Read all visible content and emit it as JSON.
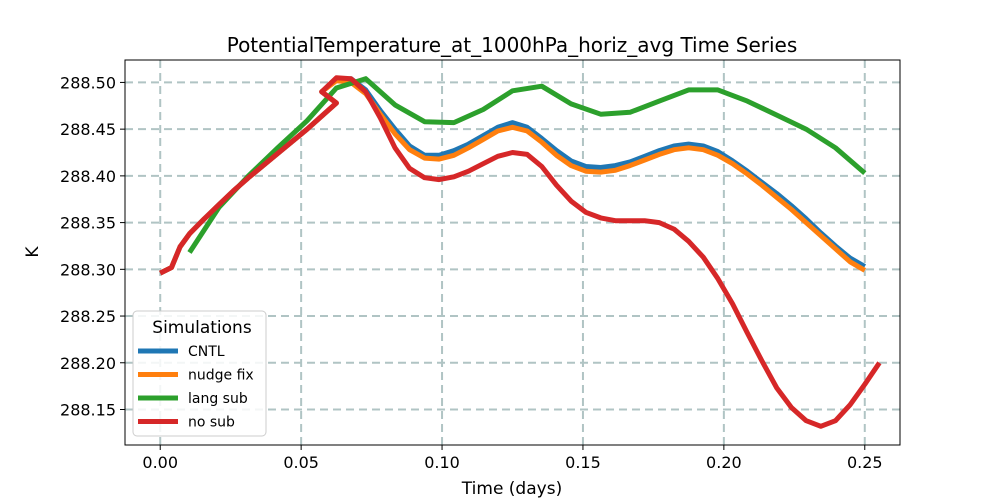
{
  "chart_data": {
    "type": "line",
    "title": "PotentialTemperature_at_1000hPa_horiz_avg Time Series",
    "xlabel": "Time (days)",
    "ylabel": "K",
    "xlim": [
      -0.0125,
      0.2625
    ],
    "ylim": [
      288.112,
      288.524
    ],
    "xticks": [
      0.0,
      0.05,
      0.1,
      0.15,
      0.2,
      0.25
    ],
    "xtick_labels": [
      "0.00",
      "0.05",
      "0.10",
      "0.15",
      "0.20",
      "0.25"
    ],
    "yticks": [
      288.15,
      288.2,
      288.25,
      288.3,
      288.35,
      288.4,
      288.45,
      288.5
    ],
    "ytick_labels": [
      "288.15",
      "288.20",
      "288.25",
      "288.30",
      "288.35",
      "288.40",
      "288.45",
      "288.50"
    ],
    "grid": true,
    "legend": {
      "title": "Simulations",
      "position": "lower-left"
    },
    "series": [
      {
        "name": "CNTL",
        "color": "#1f77b4",
        "points": [
          [
            0.0,
            288.296
          ],
          [
            0.004,
            288.302
          ],
          [
            0.007,
            288.324
          ],
          [
            0.0104,
            288.338
          ],
          [
            0.0156,
            288.354
          ],
          [
            0.0208,
            288.369
          ],
          [
            0.026,
            288.384
          ],
          [
            0.0313,
            288.398
          ],
          [
            0.0365,
            288.411
          ],
          [
            0.0417,
            288.424
          ],
          [
            0.0469,
            288.437
          ],
          [
            0.0521,
            288.45
          ],
          [
            0.0573,
            288.464
          ],
          [
            0.0625,
            288.478
          ],
          [
            0.0573,
            288.49
          ],
          [
            0.0625,
            288.503
          ],
          [
            0.0677,
            288.504
          ],
          [
            0.0729,
            288.492
          ],
          [
            0.0781,
            288.47
          ],
          [
            0.0833,
            288.45
          ],
          [
            0.0885,
            288.432
          ],
          [
            0.0938,
            288.422
          ],
          [
            0.099,
            288.422
          ],
          [
            0.1042,
            288.427
          ],
          [
            0.1094,
            288.434
          ],
          [
            0.1146,
            288.443
          ],
          [
            0.1198,
            288.452
          ],
          [
            0.125,
            288.457
          ],
          [
            0.1302,
            288.452
          ],
          [
            0.1354,
            288.44
          ],
          [
            0.1406,
            288.427
          ],
          [
            0.1458,
            288.416
          ],
          [
            0.151,
            288.41
          ],
          [
            0.1563,
            288.409
          ],
          [
            0.1615,
            288.411
          ],
          [
            0.1667,
            288.415
          ],
          [
            0.1719,
            288.421
          ],
          [
            0.1771,
            288.427
          ],
          [
            0.1823,
            288.432
          ],
          [
            0.1875,
            288.434
          ],
          [
            0.1927,
            288.432
          ],
          [
            0.1979,
            288.426
          ],
          [
            0.2031,
            288.416
          ],
          [
            0.2083,
            288.405
          ],
          [
            0.2135,
            288.393
          ],
          [
            0.2188,
            288.381
          ],
          [
            0.224,
            288.368
          ],
          [
            0.2292,
            288.354
          ],
          [
            0.2344,
            288.339
          ],
          [
            0.2396,
            288.325
          ],
          [
            0.2448,
            288.312
          ],
          [
            0.25,
            288.303
          ]
        ]
      },
      {
        "name": "nudge fix",
        "color": "#ff7f0e",
        "points": [
          [
            0.0,
            288.296
          ],
          [
            0.004,
            288.302
          ],
          [
            0.007,
            288.324
          ],
          [
            0.0104,
            288.338
          ],
          [
            0.0156,
            288.354
          ],
          [
            0.0208,
            288.369
          ],
          [
            0.026,
            288.384
          ],
          [
            0.0313,
            288.398
          ],
          [
            0.0365,
            288.411
          ],
          [
            0.0417,
            288.424
          ],
          [
            0.0469,
            288.437
          ],
          [
            0.0521,
            288.45
          ],
          [
            0.0573,
            288.464
          ],
          [
            0.0625,
            288.478
          ],
          [
            0.0573,
            288.49
          ],
          [
            0.0625,
            288.502
          ],
          [
            0.0677,
            288.5
          ],
          [
            0.0729,
            288.488
          ],
          [
            0.0781,
            288.466
          ],
          [
            0.0833,
            288.445
          ],
          [
            0.0885,
            288.428
          ],
          [
            0.0938,
            288.419
          ],
          [
            0.099,
            288.418
          ],
          [
            0.1042,
            288.422
          ],
          [
            0.1094,
            288.43
          ],
          [
            0.1146,
            288.439
          ],
          [
            0.1198,
            288.448
          ],
          [
            0.125,
            288.452
          ],
          [
            0.1302,
            288.448
          ],
          [
            0.1354,
            288.436
          ],
          [
            0.1406,
            288.422
          ],
          [
            0.1458,
            288.411
          ],
          [
            0.151,
            288.405
          ],
          [
            0.1563,
            288.404
          ],
          [
            0.1615,
            288.406
          ],
          [
            0.1667,
            288.411
          ],
          [
            0.1719,
            288.417
          ],
          [
            0.1771,
            288.423
          ],
          [
            0.1823,
            288.428
          ],
          [
            0.1875,
            288.43
          ],
          [
            0.1927,
            288.428
          ],
          [
            0.1979,
            288.422
          ],
          [
            0.2031,
            288.413
          ],
          [
            0.2083,
            288.402
          ],
          [
            0.2135,
            288.39
          ],
          [
            0.2188,
            288.377
          ],
          [
            0.224,
            288.364
          ],
          [
            0.2292,
            288.35
          ],
          [
            0.2344,
            288.336
          ],
          [
            0.2396,
            288.322
          ],
          [
            0.2448,
            288.308
          ],
          [
            0.25,
            288.299
          ]
        ]
      },
      {
        "name": "lang sub",
        "color": "#2ca02c",
        "points": [
          [
            0.0104,
            288.318
          ],
          [
            0.0208,
            288.366
          ],
          [
            0.0313,
            288.4
          ],
          [
            0.0417,
            288.43
          ],
          [
            0.0521,
            288.459
          ],
          [
            0.0625,
            288.494
          ],
          [
            0.0729,
            288.504
          ],
          [
            0.0833,
            288.476
          ],
          [
            0.0938,
            288.458
          ],
          [
            0.1042,
            288.457
          ],
          [
            0.1146,
            288.471
          ],
          [
            0.125,
            288.491
          ],
          [
            0.1354,
            288.496
          ],
          [
            0.1458,
            288.477
          ],
          [
            0.1563,
            288.466
          ],
          [
            0.1667,
            288.468
          ],
          [
            0.1771,
            288.48
          ],
          [
            0.1875,
            288.492
          ],
          [
            0.1979,
            288.492
          ],
          [
            0.2083,
            288.48
          ],
          [
            0.2188,
            288.465
          ],
          [
            0.2292,
            288.45
          ],
          [
            0.2396,
            288.43
          ],
          [
            0.25,
            288.403
          ]
        ]
      },
      {
        "name": "no sub",
        "color": "#d62728",
        "points": [
          [
            0.0,
            288.296
          ],
          [
            0.004,
            288.302
          ],
          [
            0.007,
            288.324
          ],
          [
            0.0104,
            288.338
          ],
          [
            0.0156,
            288.354
          ],
          [
            0.0208,
            288.369
          ],
          [
            0.026,
            288.384
          ],
          [
            0.0313,
            288.398
          ],
          [
            0.0365,
            288.411
          ],
          [
            0.0417,
            288.424
          ],
          [
            0.0469,
            288.437
          ],
          [
            0.0521,
            288.45
          ],
          [
            0.0573,
            288.464
          ],
          [
            0.0625,
            288.478
          ],
          [
            0.0573,
            288.49
          ],
          [
            0.0625,
            288.505
          ],
          [
            0.0677,
            288.504
          ],
          [
            0.0729,
            288.49
          ],
          [
            0.0781,
            288.462
          ],
          [
            0.0833,
            288.43
          ],
          [
            0.0885,
            288.408
          ],
          [
            0.0938,
            288.398
          ],
          [
            0.099,
            288.396
          ],
          [
            0.1042,
            288.399
          ],
          [
            0.1094,
            288.405
          ],
          [
            0.1146,
            288.413
          ],
          [
            0.1198,
            288.421
          ],
          [
            0.125,
            288.425
          ],
          [
            0.1302,
            288.423
          ],
          [
            0.1354,
            288.41
          ],
          [
            0.1406,
            288.39
          ],
          [
            0.1458,
            288.373
          ],
          [
            0.151,
            288.361
          ],
          [
            0.1563,
            288.355
          ],
          [
            0.1615,
            288.352
          ],
          [
            0.1667,
            288.352
          ],
          [
            0.1719,
            288.352
          ],
          [
            0.1771,
            288.35
          ],
          [
            0.1823,
            288.343
          ],
          [
            0.1875,
            288.33
          ],
          [
            0.1927,
            288.313
          ],
          [
            0.1979,
            288.29
          ],
          [
            0.2031,
            288.263
          ],
          [
            0.2083,
            288.232
          ],
          [
            0.2135,
            288.202
          ],
          [
            0.2188,
            288.173
          ],
          [
            0.224,
            288.152
          ],
          [
            0.2292,
            288.138
          ],
          [
            0.2344,
            288.132
          ],
          [
            0.2396,
            288.138
          ],
          [
            0.2448,
            288.155
          ],
          [
            0.25,
            288.177
          ],
          [
            0.2552,
            288.2
          ]
        ]
      }
    ]
  }
}
